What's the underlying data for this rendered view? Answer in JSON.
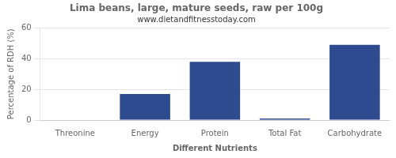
{
  "chart_data": {
    "type": "bar",
    "title": "Lima beans, large, mature seeds, raw per 100g",
    "subtitle": "www.dietandfitnesstoday.com",
    "xlabel": "Different Nutrients",
    "ylabel": "Percentage of RDH (%)",
    "categories": [
      "Threonine",
      "Energy",
      "Protein",
      "Total Fat",
      "Carbohydrate"
    ],
    "values": [
      0,
      17,
      38,
      1,
      49
    ],
    "color": "#2d4b8e",
    "ylim": [
      0,
      60
    ],
    "yticks": [
      0,
      20,
      40,
      60
    ],
    "grid": true
  }
}
